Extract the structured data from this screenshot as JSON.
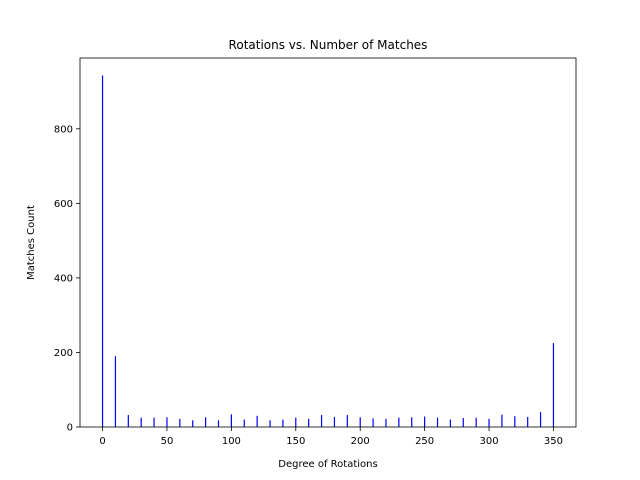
{
  "chart_data": {
    "type": "bar",
    "title": "Rotations vs. Number of Matches",
    "xlabel": "Degree of Rotations",
    "ylabel": "Matches Count",
    "xlim": [
      -17.5,
      367.5
    ],
    "ylim": [
      0,
      990
    ],
    "xticks": [
      0,
      50,
      100,
      150,
      200,
      250,
      300,
      350
    ],
    "yticks": [
      0,
      200,
      400,
      600,
      800
    ],
    "grid": false,
    "bar_color": "#0000ff",
    "x": [
      0,
      10,
      20,
      30,
      40,
      50,
      60,
      70,
      80,
      90,
      100,
      110,
      120,
      130,
      140,
      150,
      160,
      170,
      180,
      190,
      200,
      210,
      220,
      230,
      240,
      250,
      260,
      270,
      280,
      290,
      300,
      310,
      320,
      330,
      340,
      350
    ],
    "values": [
      943,
      190,
      32,
      25,
      25,
      26,
      22,
      18,
      26,
      18,
      34,
      20,
      30,
      18,
      20,
      25,
      22,
      32,
      27,
      32,
      26,
      23,
      22,
      25,
      26,
      28,
      25,
      20,
      24,
      25,
      22,
      33,
      29,
      27,
      40,
      225
    ]
  }
}
